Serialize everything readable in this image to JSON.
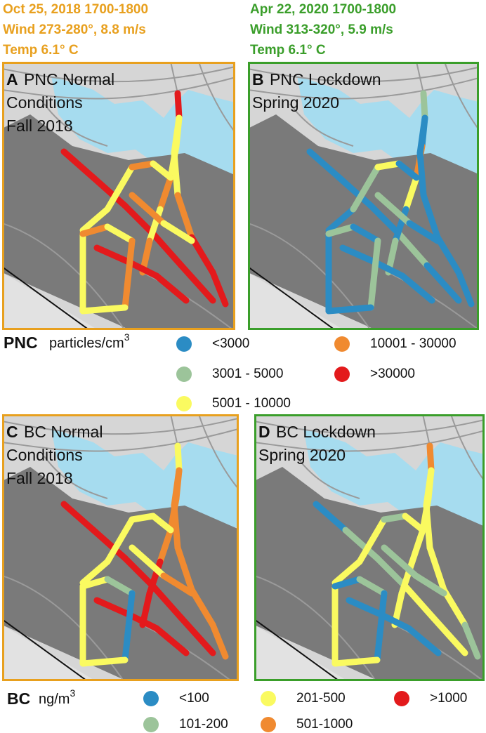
{
  "headers": [
    {
      "color": "#e8a01e",
      "lines": [
        "Oct 25, 2018 1700-1800",
        "Wind 273-280°, 8.8 m/s",
        "Temp 6.1° C"
      ]
    },
    {
      "color": "#3a9e2a",
      "lines": [
        "Apr 22, 2020 1700-1800",
        "Wind 313-320°, 5.9 m/s",
        "Temp 6.1° C"
      ]
    }
  ],
  "panels": [
    {
      "letter": "A",
      "lines": [
        "PNC Normal",
        "Conditions",
        "Fall 2018"
      ],
      "border": "#e8a01e"
    },
    {
      "letter": "B",
      "lines": [
        "PNC Lockdown",
        "Spring 2020"
      ],
      "border": "#3a9e2a"
    },
    {
      "letter": "C",
      "lines": [
        "BC Normal",
        "Conditions",
        "Fall 2018"
      ],
      "border": "#e8a01e"
    },
    {
      "letter": "D",
      "lines": [
        "BC Lockdown",
        "Spring 2020"
      ],
      "border": "#3a9e2a"
    }
  ],
  "legends": [
    {
      "label": "PNC",
      "unit": "particles/cm",
      "unit_sup": "3",
      "items": [
        {
          "label": "<3000",
          "color": "#2b8cc4"
        },
        {
          "label": "10001 - 30000",
          "color": "#f08a30"
        },
        {
          "label": "3001 - 5000",
          "color": "#9cc49a"
        },
        {
          "label": ">30000",
          "color": "#e31a1c"
        },
        {
          "label": "5001 - 10000",
          "color": "#fafa60"
        }
      ]
    },
    {
      "label": "BC",
      "unit": "ng/m",
      "unit_sup": "3",
      "items": [
        {
          "label": "<100",
          "color": "#2b8cc4"
        },
        {
          "label": "201-500",
          "color": "#fafa60"
        },
        {
          "label": ">1000",
          "color": "#e31a1c"
        },
        {
          "label": "101-200",
          "color": "#9cc49a"
        },
        {
          "label": "501-1000",
          "color": "#f08a30"
        }
      ]
    }
  ]
}
